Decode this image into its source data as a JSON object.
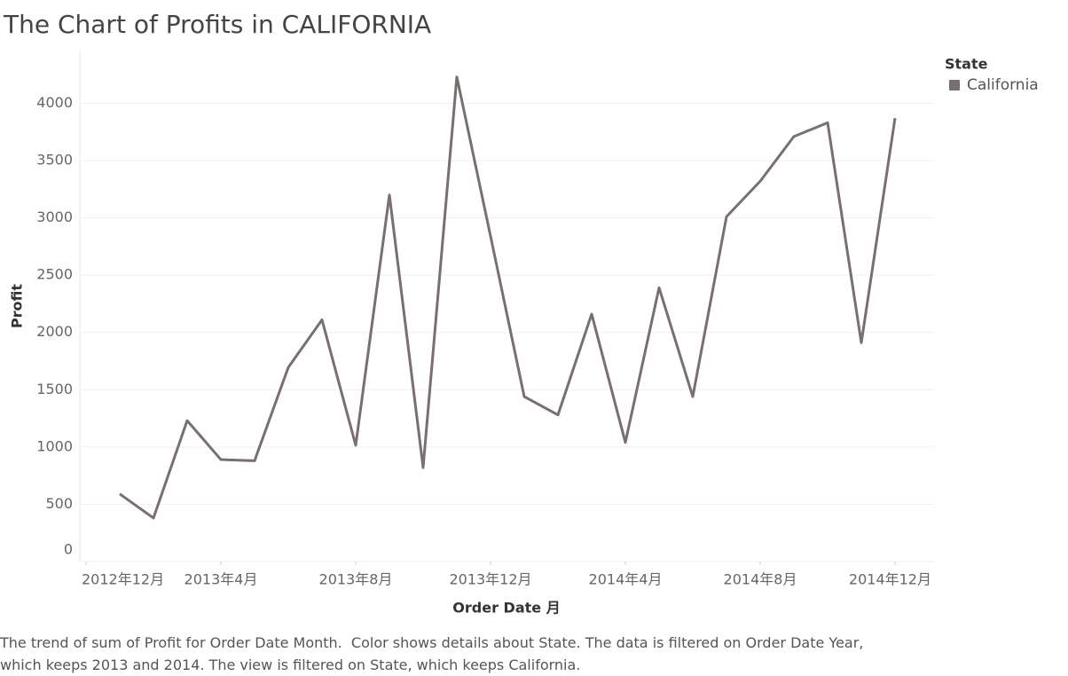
{
  "chart_data": {
    "type": "line",
    "title": "The Chart of Profits in CALIFORNIA",
    "x_label": "Order Date 月",
    "y_label": "Profit",
    "legend_title": "State",
    "legend": "top-right",
    "grid": true,
    "x": [
      "2013-01",
      "2013-02",
      "2013-03",
      "2013-04",
      "2013-05",
      "2013-06",
      "2013-07",
      "2013-08",
      "2013-09",
      "2013-10",
      "2013-11",
      "2013-12",
      "2014-01",
      "2014-02",
      "2014-03",
      "2014-04",
      "2014-05",
      "2014-06",
      "2014-07",
      "2014-08",
      "2014-09",
      "2014-10",
      "2014-11",
      "2014-12"
    ],
    "series": [
      {
        "name": "California",
        "color": "#786f6e",
        "values": [
          590,
          380,
          1230,
          890,
          880,
          1695,
          2110,
          1015,
          3200,
          820,
          4230,
          2840,
          1440,
          1280,
          2160,
          1040,
          2390,
          1440,
          3010,
          3320,
          3710,
          3830,
          1910,
          3870
        ]
      }
    ],
    "xlim": [
      "2012-12",
      "2014-12"
    ],
    "xticks": [
      {
        "value": "2012-12",
        "label": "2012年12月"
      },
      {
        "value": "2013-04",
        "label": "2013年4月"
      },
      {
        "value": "2013-08",
        "label": "2013年8月"
      },
      {
        "value": "2013-12",
        "label": "2013年12月"
      },
      {
        "value": "2014-04",
        "label": "2014年4月"
      },
      {
        "value": "2014-08",
        "label": "2014年8月"
      },
      {
        "value": "2014-12",
        "label": "2014年12月"
      }
    ],
    "ylim": [
      0,
      4460
    ],
    "yticks": [
      0,
      500,
      1000,
      1500,
      2000,
      2500,
      3000,
      3500,
      4000
    ],
    "caption": [
      "The trend of sum of Profit for Order Date Month.  Color shows details about State. The data is filtered on Order Date Year,",
      "which keeps 2013 and 2014. The view is filtered on State, which keeps California."
    ]
  }
}
